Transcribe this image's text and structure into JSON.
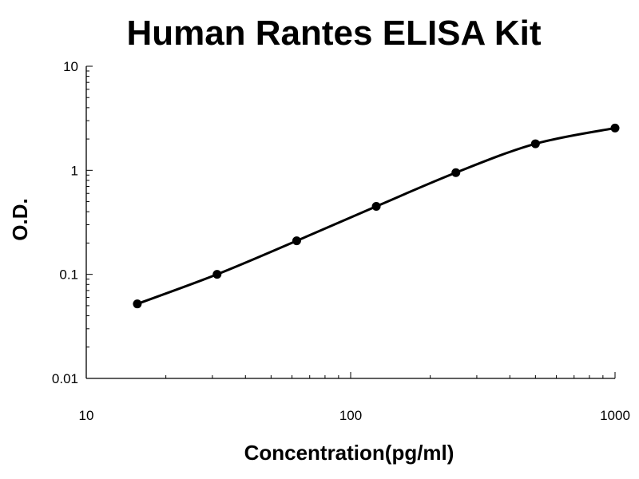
{
  "chart_data": {
    "type": "scatter",
    "title": "Human Rantes ELISA Kit",
    "xlabel": "Concentration(pg/ml)",
    "ylabel": "O.D.",
    "x_scale": "log",
    "y_scale": "log",
    "xlim": [
      10,
      1000
    ],
    "ylim": [
      0.01,
      10
    ],
    "x_ticks": [
      10,
      100,
      1000
    ],
    "x_tick_labels": [
      "10",
      "100",
      "1000"
    ],
    "y_ticks": [
      0.01,
      0.1,
      1,
      10
    ],
    "y_tick_labels": [
      "0.01",
      "0.1",
      "1",
      "10"
    ],
    "grid": false,
    "legend": "none",
    "fitted_curve": true,
    "series": [
      {
        "x": [
          15.6,
          31.25,
          62.5,
          125,
          250,
          500,
          1000
        ],
        "y": [
          0.052,
          0.1,
          0.21,
          0.45,
          0.95,
          1.8,
          2.55
        ]
      }
    ]
  }
}
